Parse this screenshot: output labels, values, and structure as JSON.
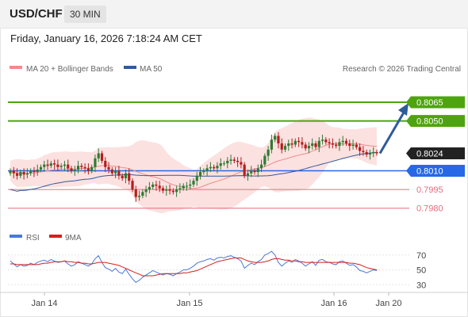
{
  "header": {
    "symbol": "USD/CHF",
    "timeframe": "30 MIN",
    "timestamp": "Friday, January 16, 2026 7:18:24 AM CET"
  },
  "legend": {
    "bollinger_label": "MA 20 + Bollinger Bands",
    "ma50_label": "MA 50",
    "rsi_label": "RSI",
    "rsi_ma_label": "9MA",
    "credit": "Research © 2026 Trading Central"
  },
  "colors": {
    "up": "#2f7a32",
    "down": "#b41e1e",
    "band_fill": "#fbdcdc",
    "ma20": "#f08a8a",
    "ma50": "#2f5b9a",
    "target": "#4ea40e",
    "pivot": "#2668e6",
    "support": "#e86b7c",
    "arrow": "#2f5b9a",
    "rsi": "#4a78d6",
    "rsi_ma": "#d81e1e"
  },
  "chart_data": [
    {
      "type": "candlestick",
      "title": "USD/CHF",
      "x_labels": [
        "Jan 14",
        "Jan 15",
        "Jan 16",
        "Jan 20"
      ],
      "ylim": [
        0.7969,
        0.8086
      ],
      "levels": [
        {
          "value": 0.8065,
          "label": "0.8065",
          "kind": "target"
        },
        {
          "value": 0.805,
          "label": "0.8050",
          "kind": "target"
        },
        {
          "value": 0.8024,
          "label": "0.8024",
          "kind": "last"
        },
        {
          "value": 0.801,
          "label": "0.8010",
          "kind": "pivot"
        },
        {
          "value": 0.7995,
          "label": "0.7995",
          "kind": "support"
        },
        {
          "value": 0.798,
          "label": "0.7980",
          "kind": "support"
        }
      ],
      "closes": [
        0.801,
        0.8008,
        0.8006,
        0.8009,
        0.8007,
        0.8008,
        0.801,
        0.8009,
        0.8011,
        0.8013,
        0.8015,
        0.8014,
        0.8016,
        0.8015,
        0.8013,
        0.8014,
        0.8015,
        0.8012,
        0.801,
        0.8011,
        0.8014,
        0.8013,
        0.8012,
        0.801,
        0.8013,
        0.802,
        0.8024,
        0.8018,
        0.8013,
        0.8011,
        0.8008,
        0.801,
        0.8006,
        0.8004,
        0.8008,
        0.8002,
        0.7995,
        0.7989,
        0.799,
        0.7993,
        0.7995,
        0.7997,
        0.7999,
        0.7998,
        0.7996,
        0.7994,
        0.7995,
        0.7994,
        0.7993,
        0.7995,
        0.7996,
        0.7998,
        0.7998,
        0.7999,
        0.8002,
        0.8006,
        0.8009,
        0.801,
        0.8012,
        0.8013,
        0.8012,
        0.8014,
        0.8016,
        0.8016,
        0.8018,
        0.8019,
        0.8018,
        0.8017,
        0.8015,
        0.8006,
        0.8008,
        0.801,
        0.8009,
        0.8012,
        0.8015,
        0.8022,
        0.8027,
        0.8035,
        0.8038,
        0.8032,
        0.8027,
        0.803,
        0.8032,
        0.8031,
        0.8034,
        0.8033,
        0.8031,
        0.8028,
        0.803,
        0.8032,
        0.8029,
        0.8034,
        0.8035,
        0.8033,
        0.8032,
        0.8031,
        0.803,
        0.8033,
        0.8034,
        0.8032,
        0.803,
        0.8031,
        0.8029,
        0.8026,
        0.8025,
        0.8023,
        0.8024,
        0.8025,
        0.8024
      ],
      "projection": {
        "from": 0.8024,
        "to": 0.8065
      }
    },
    {
      "type": "line",
      "title": "RSI",
      "yticks": [
        70,
        50,
        30
      ],
      "ylim": [
        26,
        74
      ],
      "series": [
        {
          "name": "RSI",
          "values": [
            62,
            58,
            54,
            57,
            55,
            56,
            59,
            57,
            60,
            62,
            63,
            61,
            64,
            62,
            60,
            61,
            62,
            58,
            55,
            57,
            61,
            59,
            57,
            55,
            58,
            65,
            69,
            60,
            53,
            51,
            48,
            52,
            47,
            45,
            51,
            44,
            38,
            33,
            36,
            40,
            43,
            46,
            49,
            47,
            45,
            43,
            45,
            44,
            42,
            45,
            47,
            50,
            50,
            52,
            55,
            59,
            61,
            62,
            64,
            65,
            63,
            66,
            67,
            66,
            68,
            69,
            67,
            65,
            62,
            52,
            56,
            59,
            57,
            61,
            64,
            70,
            72,
            75,
            70,
            60,
            55,
            59,
            62,
            60,
            64,
            62,
            59,
            55,
            58,
            61,
            56,
            63,
            64,
            61,
            60,
            58,
            57,
            61,
            62,
            59,
            56,
            57,
            54,
            49,
            48,
            46,
            48,
            50,
            49
          ]
        },
        {
          "name": "9MA",
          "values": [
            58,
            58,
            57,
            57,
            57,
            57,
            57,
            57,
            57,
            58,
            59,
            59,
            60,
            61,
            61,
            61,
            62,
            61,
            61,
            60,
            60,
            59,
            59,
            58,
            58,
            59,
            60,
            60,
            60,
            59,
            58,
            57,
            56,
            54,
            52,
            50,
            48,
            46,
            44,
            42,
            42,
            42,
            42,
            43,
            44,
            45,
            45,
            45,
            45,
            45,
            45,
            46,
            46,
            47,
            48,
            49,
            51,
            53,
            55,
            57,
            59,
            61,
            62,
            63,
            64,
            65,
            66,
            66,
            66,
            64,
            62,
            61,
            60,
            60,
            60,
            61,
            62,
            64,
            65,
            65,
            64,
            63,
            63,
            62,
            62,
            61,
            61,
            60,
            60,
            60,
            60,
            60,
            60,
            60,
            60,
            60,
            60,
            60,
            60,
            60,
            59,
            59,
            58,
            57,
            55,
            53,
            52,
            51,
            50
          ]
        }
      ]
    }
  ]
}
